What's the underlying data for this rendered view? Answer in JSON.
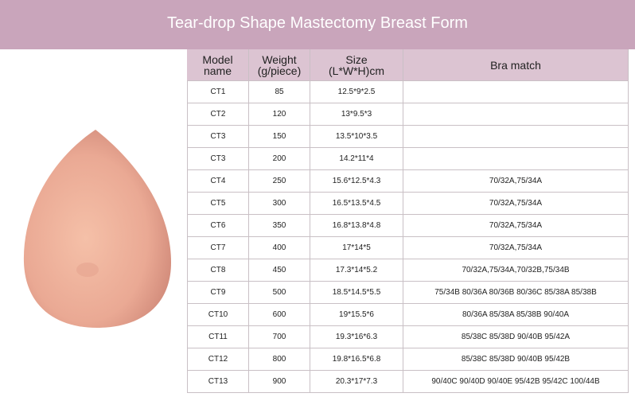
{
  "header": {
    "title": "Tear-drop Shape Mastectomy Breast Form"
  },
  "table": {
    "columns": [
      [
        "Model",
        "name"
      ],
      [
        "Weight",
        "(g/piece)"
      ],
      [
        "Size",
        "(L*W*H)cm"
      ],
      [
        "Bra match"
      ]
    ],
    "rows": [
      [
        "CT1",
        85,
        "12.5*9*2.5",
        null
      ],
      [
        "CT2",
        120,
        "13*9.5*3",
        null
      ],
      [
        "CT3",
        150,
        "13.5*10*3.5",
        null
      ],
      [
        "CT3",
        200,
        "14.2*11*4",
        null
      ],
      [
        "CT4",
        250,
        "15.6*12.5*4.3",
        "70/32A,75/34A"
      ],
      [
        "CT5",
        300,
        "16.5*13.5*4.5",
        "70/32A,75/34A"
      ],
      [
        "CT6",
        350,
        "16.8*13.8*4.8",
        "70/32A,75/34A"
      ],
      [
        "CT7",
        400,
        "17*14*5",
        "70/32A,75/34A"
      ],
      [
        "CT8",
        450,
        "17.3*14*5.2",
        "70/32A,75/34A,70/32B,75/34B"
      ],
      [
        "CT9",
        500,
        "18.5*14.5*5.5",
        "75/34B 80/36A 80/36B 80/36C 85/38A 85/38B"
      ],
      [
        "CT10",
        600,
        "19*15.5*6",
        "80/36A 85/38A 85/38B 90/40A"
      ],
      [
        "CT11",
        700,
        "19.3*16*6.3",
        "85/38C 85/38D 90/40B 95/42A"
      ],
      [
        "CT12",
        800,
        "19.8*16.5*6.8",
        "85/38C 85/38D 90/40B 95/42B"
      ],
      [
        "CT13",
        900,
        "20.3*17*7.3",
        "90/40C 90/40D 90/40E 95/42B 95/42C 100/44B"
      ]
    ]
  }
}
